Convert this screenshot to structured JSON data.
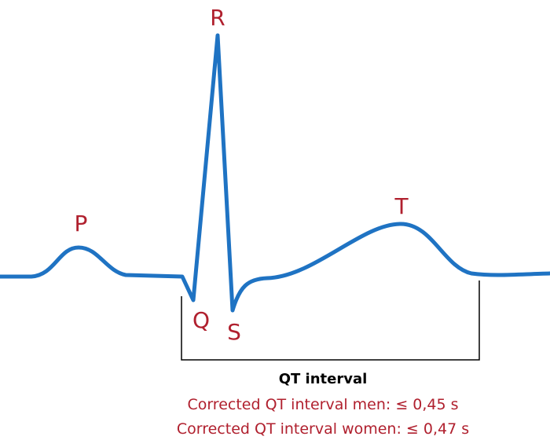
{
  "waves": {
    "p": "P",
    "q": "Q",
    "r": "R",
    "s": "S",
    "t": "T"
  },
  "interval": {
    "title": "QT interval",
    "men": "Corrected QT interval men: ≤ 0,45 s",
    "women": "Corrected QT interval women: ≤ 0,47 s"
  }
}
